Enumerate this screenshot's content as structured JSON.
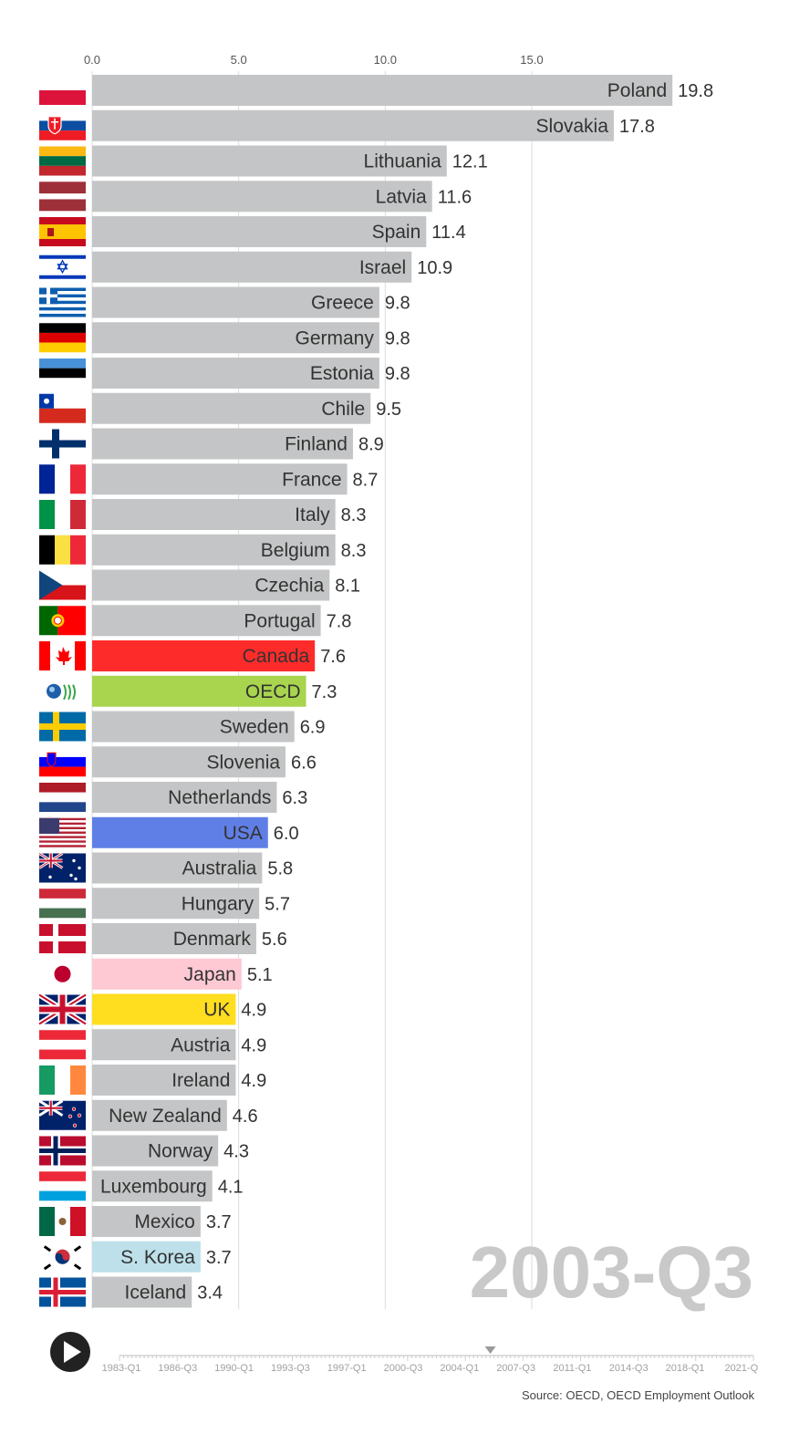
{
  "chart_data": {
    "type": "bar",
    "orientation": "horizontal",
    "period": "2003-Q3",
    "xlim": [
      0,
      20
    ],
    "x_ticks": [
      "0.0",
      "5.0",
      "10.0",
      "15.0"
    ],
    "grid": true,
    "bars": [
      {
        "label": "Poland",
        "value": 19.8,
        "color": "#c4c5c6",
        "flag": "flag-poland"
      },
      {
        "label": "Slovakia",
        "value": 17.8,
        "color": "#c4c5c6",
        "flag": "flag-slovakia"
      },
      {
        "label": "Lithuania",
        "value": 12.1,
        "color": "#c4c5c6",
        "flag": "flag-lithuania"
      },
      {
        "label": "Latvia",
        "value": 11.6,
        "color": "#c4c5c6",
        "flag": "flag-latvia"
      },
      {
        "label": "Spain",
        "value": 11.4,
        "color": "#c4c5c6",
        "flag": "flag-spain"
      },
      {
        "label": "Israel",
        "value": 10.9,
        "color": "#c4c5c6",
        "flag": "flag-israel"
      },
      {
        "label": "Greece",
        "value": 9.8,
        "color": "#c4c5c6",
        "flag": "flag-greece"
      },
      {
        "label": "Germany",
        "value": 9.8,
        "color": "#c4c5c6",
        "flag": "flag-germany"
      },
      {
        "label": "Estonia",
        "value": 9.8,
        "color": "#c4c5c6",
        "flag": "flag-estonia"
      },
      {
        "label": "Chile",
        "value": 9.5,
        "color": "#c4c5c6",
        "flag": "flag-chile"
      },
      {
        "label": "Finland",
        "value": 8.9,
        "color": "#c4c5c6",
        "flag": "flag-finland"
      },
      {
        "label": "France",
        "value": 8.7,
        "color": "#c4c5c6",
        "flag": "flag-france"
      },
      {
        "label": "Italy",
        "value": 8.3,
        "color": "#c4c5c6",
        "flag": "flag-italy"
      },
      {
        "label": "Belgium",
        "value": 8.3,
        "color": "#c4c5c6",
        "flag": "flag-belgium"
      },
      {
        "label": "Czechia",
        "value": 8.1,
        "color": "#c4c5c6",
        "flag": "flag-czechia"
      },
      {
        "label": "Portugal",
        "value": 7.8,
        "color": "#c4c5c6",
        "flag": "flag-portugal"
      },
      {
        "label": "Canada",
        "value": 7.6,
        "color": "#fe2b2b",
        "flag": "flag-canada"
      },
      {
        "label": "OECD",
        "value": 7.3,
        "color": "#a8d44e",
        "flag": "oecd-logo"
      },
      {
        "label": "Sweden",
        "value": 6.9,
        "color": "#c4c5c6",
        "flag": "flag-sweden"
      },
      {
        "label": "Slovenia",
        "value": 6.6,
        "color": "#c4c5c6",
        "flag": "flag-slovenia"
      },
      {
        "label": "Netherlands",
        "value": 6.3,
        "color": "#c4c5c6",
        "flag": "flag-netherlands"
      },
      {
        "label": "USA",
        "value": 6.0,
        "color": "#5f7fe6",
        "flag": "flag-usa"
      },
      {
        "label": "Australia",
        "value": 5.8,
        "color": "#c4c5c6",
        "flag": "flag-australia"
      },
      {
        "label": "Hungary",
        "value": 5.7,
        "color": "#c4c5c6",
        "flag": "flag-hungary"
      },
      {
        "label": "Denmark",
        "value": 5.6,
        "color": "#c4c5c6",
        "flag": "flag-denmark"
      },
      {
        "label": "Japan",
        "value": 5.1,
        "color": "#ffc9d4",
        "flag": "flag-japan"
      },
      {
        "label": "UK",
        "value": 4.9,
        "color": "#ffdd1f",
        "flag": "flag-uk"
      },
      {
        "label": "Austria",
        "value": 4.9,
        "color": "#c4c5c6",
        "flag": "flag-austria"
      },
      {
        "label": "Ireland",
        "value": 4.9,
        "color": "#c4c5c6",
        "flag": "flag-ireland"
      },
      {
        "label": "New Zealand",
        "value": 4.6,
        "color": "#c4c5c6",
        "flag": "flag-new-zealand"
      },
      {
        "label": "Norway",
        "value": 4.3,
        "color": "#c4c5c6",
        "flag": "flag-norway"
      },
      {
        "label": "Luxembourg",
        "value": 4.1,
        "color": "#c4c5c6",
        "flag": "flag-luxembourg"
      },
      {
        "label": "Mexico",
        "value": 3.7,
        "color": "#c4c5c6",
        "flag": "flag-mexico"
      },
      {
        "label": "S. Korea",
        "value": 3.7,
        "color": "#bde0ea",
        "flag": "flag-south-korea"
      },
      {
        "label": "Iceland",
        "value": 3.4,
        "color": "#c4c5c6",
        "flag": "flag-iceland"
      }
    ]
  },
  "timeline": {
    "labels": [
      "1983-Q1",
      "1986-Q3",
      "1990-Q1",
      "1993-Q3",
      "1997-Q1",
      "2000-Q3",
      "2004-Q1",
      "2007-Q3",
      "2011-Q1",
      "2014-Q3",
      "2018-Q1",
      "2021-Q"
    ],
    "current_position": 0.585,
    "play_icon": "play-icon"
  },
  "source": "Source: OECD, OECD Employment Outlook"
}
